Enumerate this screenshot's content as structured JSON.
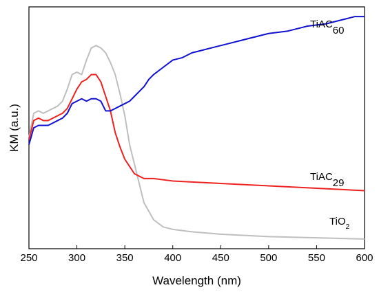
{
  "chart_data": {
    "type": "line",
    "xlabel": "Wavelength (nm)",
    "ylabel": "KM (a.u.)",
    "xlim": [
      250,
      600
    ],
    "ylim": [
      0,
      1
    ],
    "x_ticks": [
      "250",
      "300",
      "350",
      "400",
      "450",
      "500",
      "550",
      "600"
    ],
    "y_ticks_shown": false,
    "grid": false,
    "legend": "none (series labeled directly)",
    "series": [
      {
        "name": "TiAC60",
        "label_base": "TiAC",
        "label_sub": "60",
        "color": "#1010d0",
        "x": [
          250,
          255,
          260,
          265,
          270,
          275,
          280,
          285,
          290,
          295,
          300,
          305,
          310,
          315,
          320,
          325,
          330,
          335,
          340,
          345,
          350,
          355,
          360,
          365,
          370,
          375,
          380,
          390,
          400,
          410,
          420,
          430,
          440,
          450,
          460,
          470,
          480,
          490,
          500,
          520,
          540,
          560,
          580,
          590,
          600
        ],
        "y": [
          0.43,
          0.5,
          0.51,
          0.51,
          0.51,
          0.52,
          0.53,
          0.54,
          0.56,
          0.6,
          0.61,
          0.62,
          0.61,
          0.62,
          0.62,
          0.61,
          0.57,
          0.57,
          0.58,
          0.59,
          0.6,
          0.61,
          0.63,
          0.65,
          0.67,
          0.7,
          0.72,
          0.75,
          0.78,
          0.79,
          0.81,
          0.82,
          0.83,
          0.84,
          0.85,
          0.86,
          0.87,
          0.88,
          0.89,
          0.9,
          0.92,
          0.93,
          0.95,
          0.96,
          0.96
        ]
      },
      {
        "name": "TiAC29",
        "label_base": "TiAC",
        "label_sub": "29",
        "color": "#ee2020",
        "x": [
          250,
          255,
          260,
          265,
          270,
          275,
          280,
          285,
          290,
          295,
          300,
          305,
          310,
          315,
          320,
          325,
          330,
          335,
          340,
          345,
          350,
          355,
          360,
          365,
          370,
          380,
          400,
          450,
          500,
          550,
          600
        ],
        "y": [
          0.45,
          0.53,
          0.54,
          0.53,
          0.53,
          0.54,
          0.55,
          0.56,
          0.58,
          0.62,
          0.66,
          0.69,
          0.7,
          0.72,
          0.72,
          0.69,
          0.63,
          0.57,
          0.48,
          0.42,
          0.37,
          0.34,
          0.31,
          0.3,
          0.29,
          0.29,
          0.28,
          0.27,
          0.26,
          0.25,
          0.24
        ]
      },
      {
        "name": "TiO2",
        "label_base": "TiO",
        "label_sub": "2",
        "color": "#bebebe",
        "x": [
          250,
          255,
          260,
          265,
          270,
          275,
          280,
          285,
          290,
          295,
          300,
          305,
          310,
          315,
          320,
          325,
          330,
          335,
          340,
          345,
          350,
          355,
          360,
          365,
          370,
          380,
          390,
          400,
          420,
          450,
          500,
          550,
          600
        ],
        "y": [
          0.46,
          0.56,
          0.57,
          0.56,
          0.57,
          0.58,
          0.59,
          0.61,
          0.66,
          0.72,
          0.73,
          0.72,
          0.78,
          0.83,
          0.84,
          0.83,
          0.81,
          0.77,
          0.72,
          0.64,
          0.55,
          0.43,
          0.35,
          0.27,
          0.19,
          0.12,
          0.09,
          0.08,
          0.07,
          0.06,
          0.05,
          0.045,
          0.04
        ]
      }
    ]
  }
}
